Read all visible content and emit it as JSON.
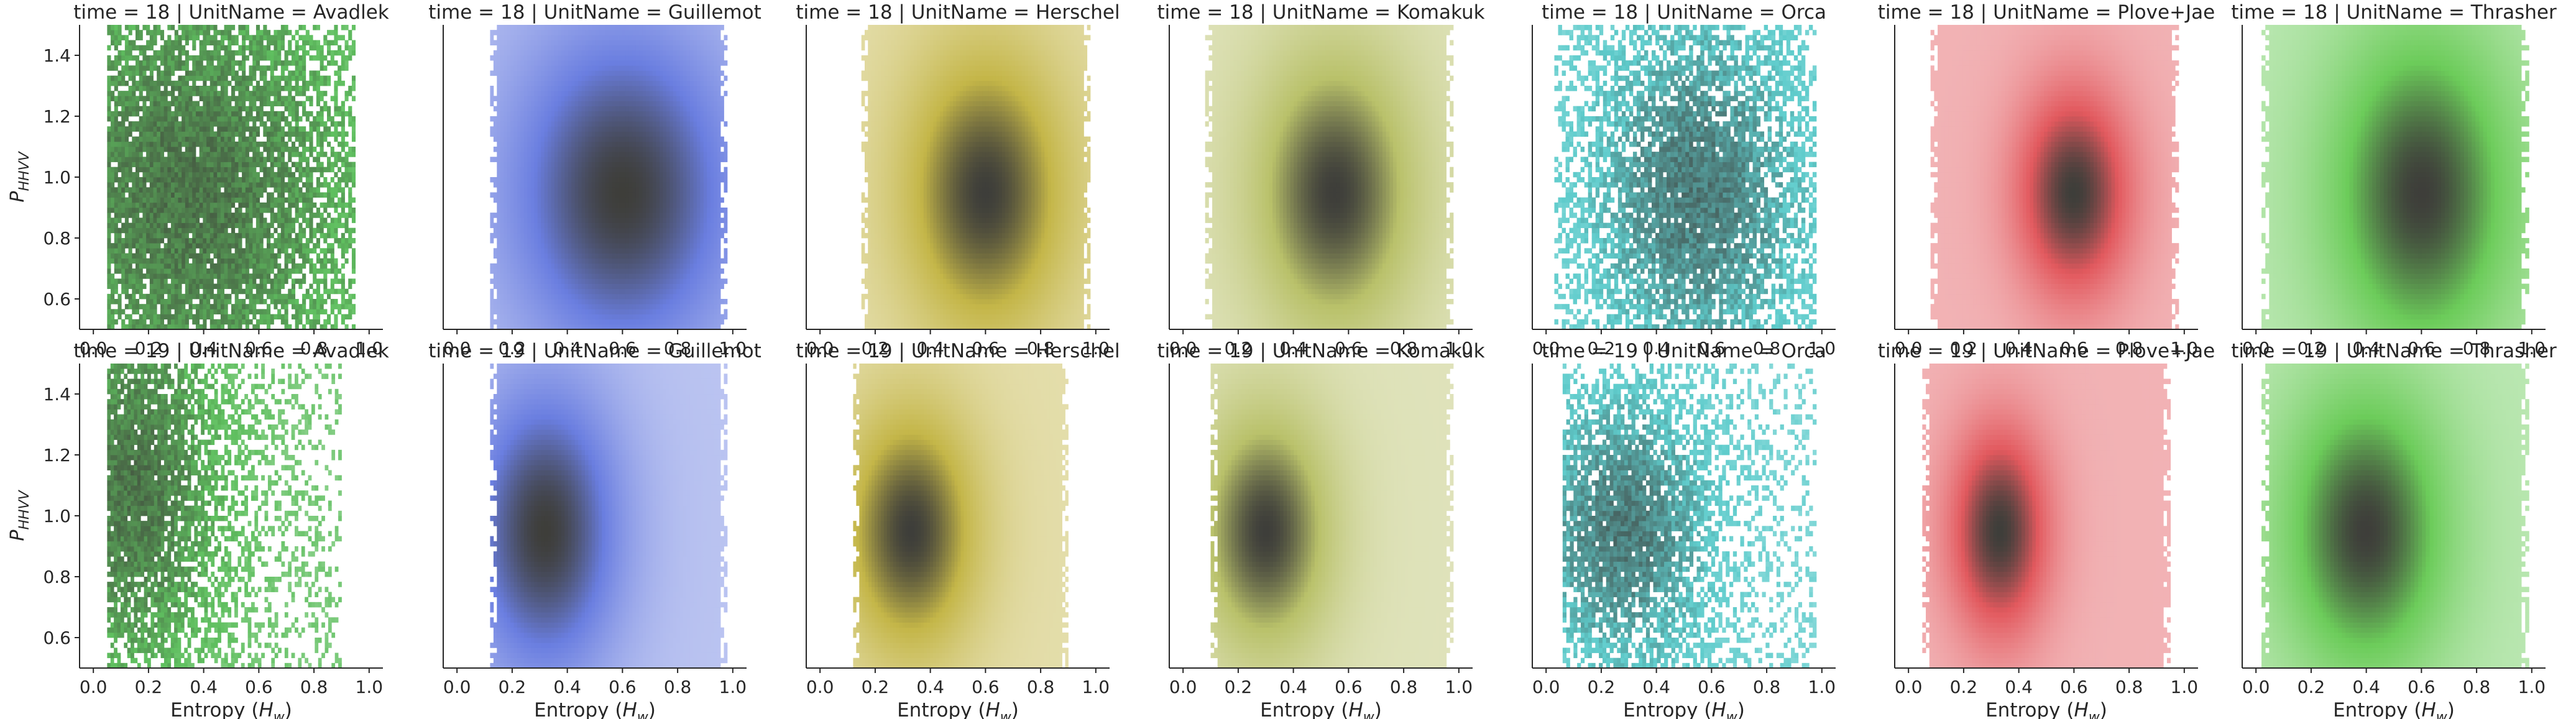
{
  "figure": {
    "kind": "faceted 2D histogram grid",
    "rows": 2,
    "cols": 7,
    "background": "#ffffff",
    "axis_color": "#262626"
  },
  "chart_data": [
    {
      "type": "heatmap",
      "title": "time = 18 | UnitName = Avadlek",
      "color": "#5fbf5f",
      "sparse": true,
      "center": [
        0.35,
        0.95
      ],
      "spread": [
        0.5,
        0.6
      ],
      "x_extent": [
        0.05,
        0.95
      ],
      "xlabel": "",
      "ylabel": "P_{HHVV}",
      "xlim": [
        -0.05,
        1.05
      ],
      "ylim": [
        0.5,
        1.5
      ],
      "xticks": [
        "0.0",
        "0.2",
        "0.4",
        "0.6",
        "0.8",
        "1.0"
      ],
      "yticks": [
        "0.6",
        "0.8",
        "1.0",
        "1.2",
        "1.4"
      ],
      "grid": false
    },
    {
      "type": "heatmap",
      "title": "time = 18 | UnitName = Guillemot",
      "color": "#6a7ee0",
      "sparse": false,
      "center": [
        0.6,
        0.95
      ],
      "spread": [
        0.3,
        0.4
      ],
      "x_extent": [
        0.12,
        0.98
      ],
      "xlabel": "",
      "ylabel": "",
      "xlim": [
        -0.05,
        1.05
      ],
      "ylim": [
        0.5,
        1.5
      ],
      "xticks": [
        "0.0",
        "0.2",
        "0.4",
        "0.6",
        "0.8",
        "1.0"
      ],
      "yticks": [
        "0.6",
        "0.8",
        "1.0",
        "1.2",
        "1.4"
      ],
      "grid": false
    },
    {
      "type": "heatmap",
      "title": "time = 18 | UnitName = Herschel",
      "color": "#c4b648",
      "sparse": false,
      "center": [
        0.6,
        0.95
      ],
      "spread": [
        0.22,
        0.35
      ],
      "x_extent": [
        0.15,
        0.98
      ],
      "xlabel": "",
      "ylabel": "",
      "xlim": [
        -0.05,
        1.05
      ],
      "ylim": [
        0.5,
        1.5
      ],
      "xticks": [
        "0.0",
        "0.2",
        "0.4",
        "0.6",
        "0.8",
        "1.0"
      ],
      "yticks": [
        "0.6",
        "0.8",
        "1.0",
        "1.2",
        "1.4"
      ],
      "grid": false
    },
    {
      "type": "heatmap",
      "title": "time = 18 | UnitName = Komakuk",
      "color": "#b9c16a",
      "sparse": false,
      "center": [
        0.55,
        0.95
      ],
      "spread": [
        0.22,
        0.35
      ],
      "x_extent": [
        0.08,
        0.98
      ],
      "xlabel": "",
      "ylabel": "",
      "xlim": [
        -0.05,
        1.05
      ],
      "ylim": [
        0.5,
        1.5
      ],
      "xticks": [
        "0.0",
        "0.2",
        "0.4",
        "0.6",
        "0.8",
        "1.0"
      ],
      "yticks": [
        "0.6",
        "0.8",
        "1.0",
        "1.2",
        "1.4"
      ],
      "grid": false
    },
    {
      "type": "heatmap",
      "title": "time = 18 | UnitName = Orca",
      "color": "#5fcccc",
      "sparse": true,
      "center": [
        0.55,
        0.95
      ],
      "spread": [
        0.3,
        0.45
      ],
      "x_extent": [
        0.03,
        0.98
      ],
      "xlabel": "",
      "ylabel": "",
      "xlim": [
        -0.05,
        1.05
      ],
      "ylim": [
        0.5,
        1.5
      ],
      "xticks": [
        "0.0",
        "0.2",
        "0.4",
        "0.6",
        "0.8",
        "1.0"
      ],
      "yticks": [
        "0.6",
        "0.8",
        "1.0",
        "1.2",
        "1.4"
      ],
      "grid": false
    },
    {
      "type": "heatmap",
      "title": "time = 18 | UnitName = Plove+Jae",
      "color": "#e2595e",
      "sparse": false,
      "center": [
        0.6,
        0.95
      ],
      "spread": [
        0.15,
        0.25
      ],
      "x_extent": [
        0.08,
        0.98
      ],
      "xlabel": "",
      "ylabel": "",
      "xlim": [
        -0.05,
        1.05
      ],
      "ylim": [
        0.5,
        1.5
      ],
      "xticks": [
        "0.0",
        "0.2",
        "0.4",
        "0.6",
        "0.8",
        "1.0"
      ],
      "yticks": [
        "0.6",
        "0.8",
        "1.0",
        "1.2",
        "1.4"
      ],
      "grid": false
    },
    {
      "type": "heatmap",
      "title": "time = 18 | UnitName = Thrasher",
      "color": "#6ccc5a",
      "sparse": false,
      "center": [
        0.6,
        0.95
      ],
      "spread": [
        0.25,
        0.4
      ],
      "x_extent": [
        0.02,
        0.99
      ],
      "xlabel": "",
      "ylabel": "",
      "xlim": [
        -0.05,
        1.05
      ],
      "ylim": [
        0.5,
        1.5
      ],
      "xticks": [
        "0.0",
        "0.2",
        "0.4",
        "0.6",
        "0.8",
        "1.0"
      ],
      "yticks": [
        "0.6",
        "0.8",
        "1.0",
        "1.2",
        "1.4"
      ],
      "grid": false
    },
    {
      "type": "heatmap",
      "title": "time = 19 | UnitName = Avadlek",
      "color": "#5fbf5f",
      "sparse": true,
      "center": [
        0.15,
        1.1
      ],
      "spread": [
        0.25,
        0.5
      ],
      "x_extent": [
        0.05,
        0.9
      ],
      "xlabel": "Entropy (H_w)",
      "ylabel": "P_{HHVV}",
      "xlim": [
        -0.05,
        1.05
      ],
      "ylim": [
        0.5,
        1.5
      ],
      "xticks": [
        "0.0",
        "0.2",
        "0.4",
        "0.6",
        "0.8",
        "1.0"
      ],
      "yticks": [
        "0.6",
        "0.8",
        "1.0",
        "1.2",
        "1.4"
      ],
      "grid": false
    },
    {
      "type": "heatmap",
      "title": "time = 19 | UnitName = Guillemot",
      "color": "#6a7ee0",
      "sparse": false,
      "center": [
        0.32,
        0.95
      ],
      "spread": [
        0.2,
        0.35
      ],
      "x_extent": [
        0.12,
        0.98
      ],
      "xlabel": "Entropy (H_w)",
      "ylabel": "",
      "xlim": [
        -0.05,
        1.05
      ],
      "ylim": [
        0.5,
        1.5
      ],
      "xticks": [
        "0.0",
        "0.2",
        "0.4",
        "0.6",
        "0.8",
        "1.0"
      ],
      "yticks": [
        "0.6",
        "0.8",
        "1.0",
        "1.2",
        "1.4"
      ],
      "grid": false
    },
    {
      "type": "heatmap",
      "title": "time = 19 | UnitName = Herschel",
      "color": "#c4b648",
      "sparse": false,
      "center": [
        0.33,
        0.95
      ],
      "spread": [
        0.18,
        0.3
      ],
      "x_extent": [
        0.12,
        0.9
      ],
      "xlabel": "Entropy (H_w)",
      "ylabel": "",
      "xlim": [
        -0.05,
        1.05
      ],
      "ylim": [
        0.5,
        1.5
      ],
      "xticks": [
        "0.0",
        "0.2",
        "0.4",
        "0.6",
        "0.8",
        "1.0"
      ],
      "yticks": [
        "0.6",
        "0.8",
        "1.0",
        "1.2",
        "1.4"
      ],
      "grid": false
    },
    {
      "type": "heatmap",
      "title": "time = 19 | UnitName = Komakuk",
      "color": "#b9c16a",
      "sparse": false,
      "center": [
        0.3,
        0.95
      ],
      "spread": [
        0.18,
        0.3
      ],
      "x_extent": [
        0.1,
        0.98
      ],
      "xlabel": "Entropy (H_w)",
      "ylabel": "",
      "xlim": [
        -0.05,
        1.05
      ],
      "ylim": [
        0.5,
        1.5
      ],
      "xticks": [
        "0.0",
        "0.2",
        "0.4",
        "0.6",
        "0.8",
        "1.0"
      ],
      "yticks": [
        "0.6",
        "0.8",
        "1.0",
        "1.2",
        "1.4"
      ],
      "grid": false
    },
    {
      "type": "heatmap",
      "title": "time = 19 | UnitName = Orca",
      "color": "#5fcccc",
      "sparse": true,
      "center": [
        0.28,
        0.95
      ],
      "spread": [
        0.25,
        0.35
      ],
      "x_extent": [
        0.06,
        0.98
      ],
      "xlabel": "Entropy (H_w)",
      "ylabel": "",
      "xlim": [
        -0.05,
        1.05
      ],
      "ylim": [
        0.5,
        1.5
      ],
      "xticks": [
        "0.0",
        "0.2",
        "0.4",
        "0.6",
        "0.8",
        "1.0"
      ],
      "yticks": [
        "0.6",
        "0.8",
        "1.0",
        "1.2",
        "1.4"
      ],
      "grid": false
    },
    {
      "type": "heatmap",
      "title": "time = 19 | UnitName = Plove+Jae",
      "color": "#e2595e",
      "sparse": false,
      "center": [
        0.33,
        0.95
      ],
      "spread": [
        0.13,
        0.25
      ],
      "x_extent": [
        0.05,
        0.95
      ],
      "xlabel": "Entropy (H_w)",
      "ylabel": "",
      "xlim": [
        -0.05,
        1.05
      ],
      "ylim": [
        0.5,
        1.5
      ],
      "xticks": [
        "0.0",
        "0.2",
        "0.4",
        "0.6",
        "0.8",
        "1.0"
      ],
      "yticks": [
        "0.6",
        "0.8",
        "1.0",
        "1.2",
        "1.4"
      ],
      "grid": false
    },
    {
      "type": "heatmap",
      "title": "time = 19 | UnitName = Thrasher",
      "color": "#6ccc5a",
      "sparse": false,
      "center": [
        0.4,
        0.95
      ],
      "spread": [
        0.22,
        0.35
      ],
      "x_extent": [
        0.02,
        0.99
      ],
      "xlabel": "Entropy (H_w)",
      "ylabel": "",
      "xlim": [
        -0.05,
        1.05
      ],
      "ylim": [
        0.5,
        1.5
      ],
      "xticks": [
        "0.0",
        "0.2",
        "0.4",
        "0.6",
        "0.8",
        "1.0"
      ],
      "yticks": [
        "0.6",
        "0.8",
        "1.0",
        "1.2",
        "1.4"
      ],
      "grid": false
    }
  ]
}
